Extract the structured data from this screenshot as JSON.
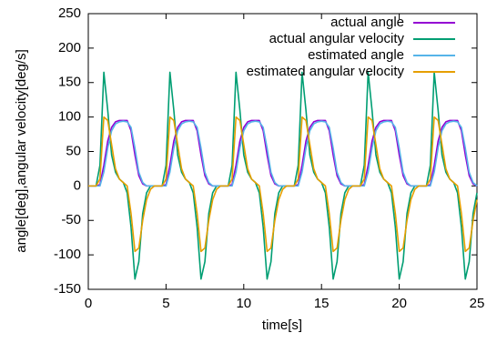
{
  "chart_data": {
    "type": "line",
    "xlabel": "time[s]",
    "ylabel": "angle[deg],angular velocity[deg/s]",
    "xlim": [
      0,
      25
    ],
    "ylim": [
      -150,
      250
    ],
    "xticks": [
      0,
      5,
      10,
      15,
      20,
      25
    ],
    "yticks": [
      -150,
      -100,
      -50,
      0,
      50,
      100,
      150,
      200,
      250
    ],
    "grid": false,
    "legend": "top-right",
    "x": [
      0,
      0.25,
      0.5,
      0.75,
      1,
      1.25,
      1.5,
      1.75,
      2,
      2.25,
      2.5,
      2.75,
      3,
      3.25,
      3.5,
      3.75,
      4,
      4.25,
      4.5,
      4.75,
      5,
      5.25,
      5.5,
      5.75,
      6,
      6.25,
      6.5,
      6.75,
      7,
      7.25,
      7.5,
      7.75,
      8,
      8.25,
      8.5,
      8.75,
      9,
      9.25,
      9.5,
      9.75,
      10,
      10.25,
      10.5,
      10.75,
      11,
      11.25,
      11.5,
      11.75,
      12,
      12.25,
      12.5,
      12.75,
      13,
      13.25,
      13.5,
      13.75,
      14,
      14.25,
      14.5,
      14.75,
      15,
      15.25,
      15.5,
      15.75,
      16,
      16.25,
      16.5,
      16.75,
      17,
      17.25,
      17.5,
      17.75,
      18,
      18.25,
      18.5,
      18.75,
      19,
      19.25,
      19.5,
      19.75,
      20,
      20.25,
      20.5,
      20.75,
      21,
      21.25,
      21.5,
      21.75,
      22,
      22.25,
      22.5,
      22.75,
      23,
      23.25,
      23.5,
      23.75,
      24,
      24.25,
      24.5,
      24.75,
      25
    ],
    "series": [
      {
        "name": "actual angle",
        "color": "#9400d3",
        "values": [
          0,
          0,
          0,
          2,
          30,
          65,
          85,
          93,
          95,
          95,
          95,
          80,
          45,
          15,
          3,
          0,
          0,
          0,
          0,
          0,
          2,
          30,
          65,
          85,
          93,
          95,
          95,
          95,
          80,
          45,
          15,
          3,
          0,
          0,
          0,
          0,
          0,
          2,
          30,
          65,
          85,
          93,
          95,
          95,
          95,
          80,
          45,
          15,
          3,
          0,
          0,
          0,
          0,
          0,
          2,
          30,
          65,
          85,
          93,
          95,
          95,
          95,
          80,
          45,
          15,
          3,
          0,
          0,
          0,
          0,
          0,
          2,
          30,
          65,
          85,
          93,
          95,
          95,
          95,
          80,
          45,
          15,
          3,
          0,
          0,
          0,
          0,
          0,
          2,
          30,
          65,
          85,
          93,
          95,
          95,
          95,
          80,
          45,
          15,
          3,
          0
        ]
      },
      {
        "name": "actual angular velocity",
        "color": "#009e73",
        "values": [
          0,
          0,
          0,
          30,
          165,
          110,
          45,
          20,
          10,
          5,
          -10,
          -60,
          -135,
          -110,
          -40,
          -10,
          0,
          0,
          0,
          0,
          30,
          165,
          110,
          45,
          20,
          10,
          5,
          -10,
          -60,
          -135,
          -110,
          -40,
          -10,
          0,
          0,
          0,
          0,
          30,
          165,
          110,
          45,
          20,
          10,
          5,
          -10,
          -60,
          -135,
          -110,
          -40,
          -10,
          0,
          0,
          0,
          0,
          30,
          165,
          110,
          45,
          20,
          10,
          5,
          -10,
          -60,
          -135,
          -110,
          -40,
          -10,
          0,
          0,
          0,
          0,
          30,
          165,
          110,
          45,
          20,
          10,
          5,
          -10,
          -60,
          -135,
          -110,
          -40,
          -10,
          0,
          0,
          0,
          0,
          30,
          165,
          110,
          45,
          20,
          10,
          5,
          -10,
          -60,
          -135,
          -110,
          -40,
          -10
        ]
      },
      {
        "name": "estimated angle",
        "color": "#56b4e9",
        "values": [
          0,
          0,
          0,
          0,
          20,
          55,
          80,
          90,
          93,
          94,
          93,
          85,
          55,
          20,
          5,
          0,
          0,
          0,
          0,
          0,
          0,
          20,
          55,
          80,
          90,
          93,
          94,
          93,
          85,
          55,
          20,
          5,
          0,
          0,
          0,
          0,
          0,
          0,
          20,
          55,
          80,
          90,
          93,
          94,
          93,
          85,
          55,
          20,
          5,
          0,
          0,
          0,
          0,
          0,
          0,
          20,
          55,
          80,
          90,
          93,
          94,
          93,
          85,
          55,
          20,
          5,
          0,
          0,
          0,
          0,
          0,
          0,
          20,
          55,
          80,
          90,
          93,
          94,
          93,
          85,
          55,
          20,
          5,
          0,
          0,
          0,
          0,
          0,
          0,
          20,
          55,
          80,
          90,
          93,
          94,
          93,
          85,
          55,
          20,
          5,
          0
        ]
      },
      {
        "name": "estimated angular velocity",
        "color": "#e69f00",
        "values": [
          0,
          0,
          0,
          10,
          100,
          95,
          60,
          25,
          10,
          5,
          0,
          -40,
          -95,
          -90,
          -50,
          -20,
          -5,
          0,
          0,
          0,
          10,
          100,
          95,
          60,
          25,
          10,
          5,
          0,
          -40,
          -95,
          -90,
          -50,
          -20,
          -5,
          0,
          0,
          0,
          10,
          100,
          95,
          60,
          25,
          10,
          5,
          0,
          -40,
          -95,
          -90,
          -50,
          -20,
          -5,
          0,
          0,
          0,
          10,
          100,
          95,
          60,
          25,
          10,
          5,
          0,
          -40,
          -95,
          -90,
          -50,
          -20,
          -5,
          0,
          0,
          0,
          10,
          100,
          95,
          60,
          25,
          10,
          5,
          0,
          -40,
          -95,
          -90,
          -50,
          -20,
          -5,
          0,
          0,
          0,
          10,
          100,
          95,
          60,
          25,
          10,
          5,
          0,
          -40,
          -95,
          -90,
          -50,
          -20
        ]
      }
    ]
  }
}
